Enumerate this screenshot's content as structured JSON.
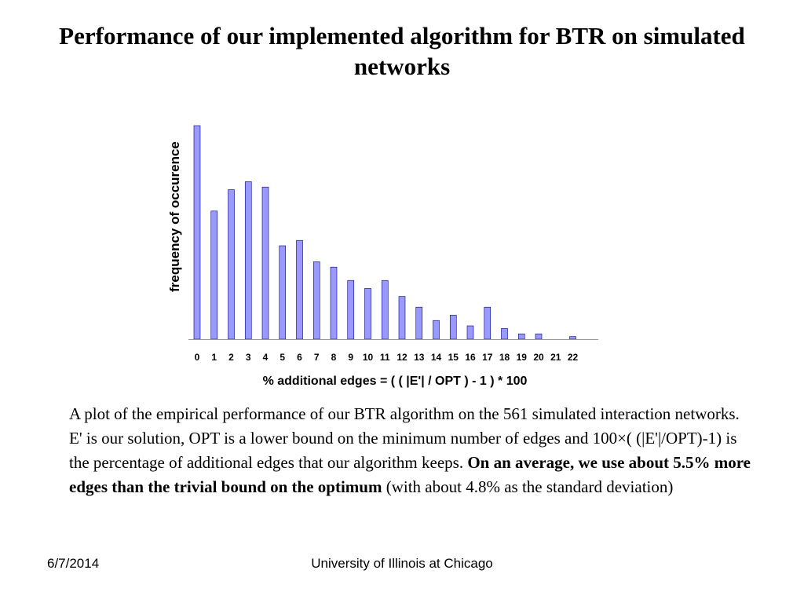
{
  "slide": {
    "title": "Performance of our implemented algorithm for BTR on simulated networks",
    "caption_plain_1": "A plot of the empirical performance of our BTR algorithm on the 561 simulated interaction networks. E' is our solution, OPT is a lower bound on the minimum number of edges and 100×( (|E'|/OPT)-1) is the percentage  of additional edges that our algorithm keeps. ",
    "caption_bold": "On an average, we use about 5.5% more edges than the trivial bound on the optimum",
    "caption_plain_2": " (with about 4.8% as the standard deviation)",
    "footer_date": "6/7/2014",
    "footer_center": "University of Illinois at Chicago"
  },
  "chart_data": {
    "type": "bar",
    "title": "",
    "xlabel": "% additional edges = ( ( |E'| / OPT )  - 1 ) * 100",
    "ylabel": "frequency of occurence",
    "categories": [
      "0",
      "1",
      "2",
      "3",
      "4",
      "5",
      "6",
      "7",
      "8",
      "9",
      "10",
      "11",
      "12",
      "13",
      "14",
      "15",
      "16",
      "17",
      "18",
      "19",
      "20",
      "21",
      "22"
    ],
    "values": [
      80,
      48,
      56,
      59,
      57,
      35,
      37,
      29,
      27,
      22,
      19,
      22,
      16,
      12,
      7,
      9,
      5,
      12,
      4,
      2,
      2,
      0,
      1
    ],
    "ylim": [
      0,
      80
    ],
    "grid": false,
    "legend": "none",
    "bar_color": "#9999ff",
    "bar_edge_color": "#000080"
  }
}
